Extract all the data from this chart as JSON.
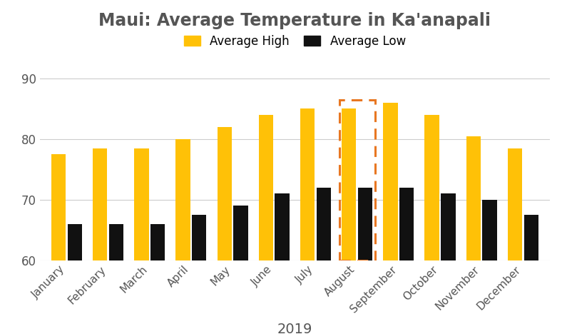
{
  "title": "Maui: Average Temperature in Ka'anapali",
  "xlabel": "2019",
  "months": [
    "January",
    "February",
    "March",
    "April",
    "May",
    "June",
    "July",
    "August",
    "September",
    "October",
    "November",
    "December"
  ],
  "avg_high": [
    77.5,
    78.5,
    78.5,
    80,
    82,
    84,
    85,
    85,
    86,
    84,
    80.5,
    78.5
  ],
  "avg_low": [
    66,
    66,
    66,
    67.5,
    69,
    71,
    72,
    72,
    72,
    71,
    70,
    67.5
  ],
  "bar_color_high": "#FFC107",
  "bar_color_low": "#111111",
  "highlight_month_index": 7,
  "highlight_color": "#E87722",
  "ylim": [
    60,
    93
  ],
  "yticks": [
    60,
    70,
    80,
    90
  ],
  "background_color": "#ffffff",
  "title_fontsize": 17,
  "legend_high": "Average High",
  "legend_low": "Average Low",
  "bar_width": 0.35,
  "bar_gap": 0.04,
  "title_color": "#555555",
  "tick_color": "#555555"
}
